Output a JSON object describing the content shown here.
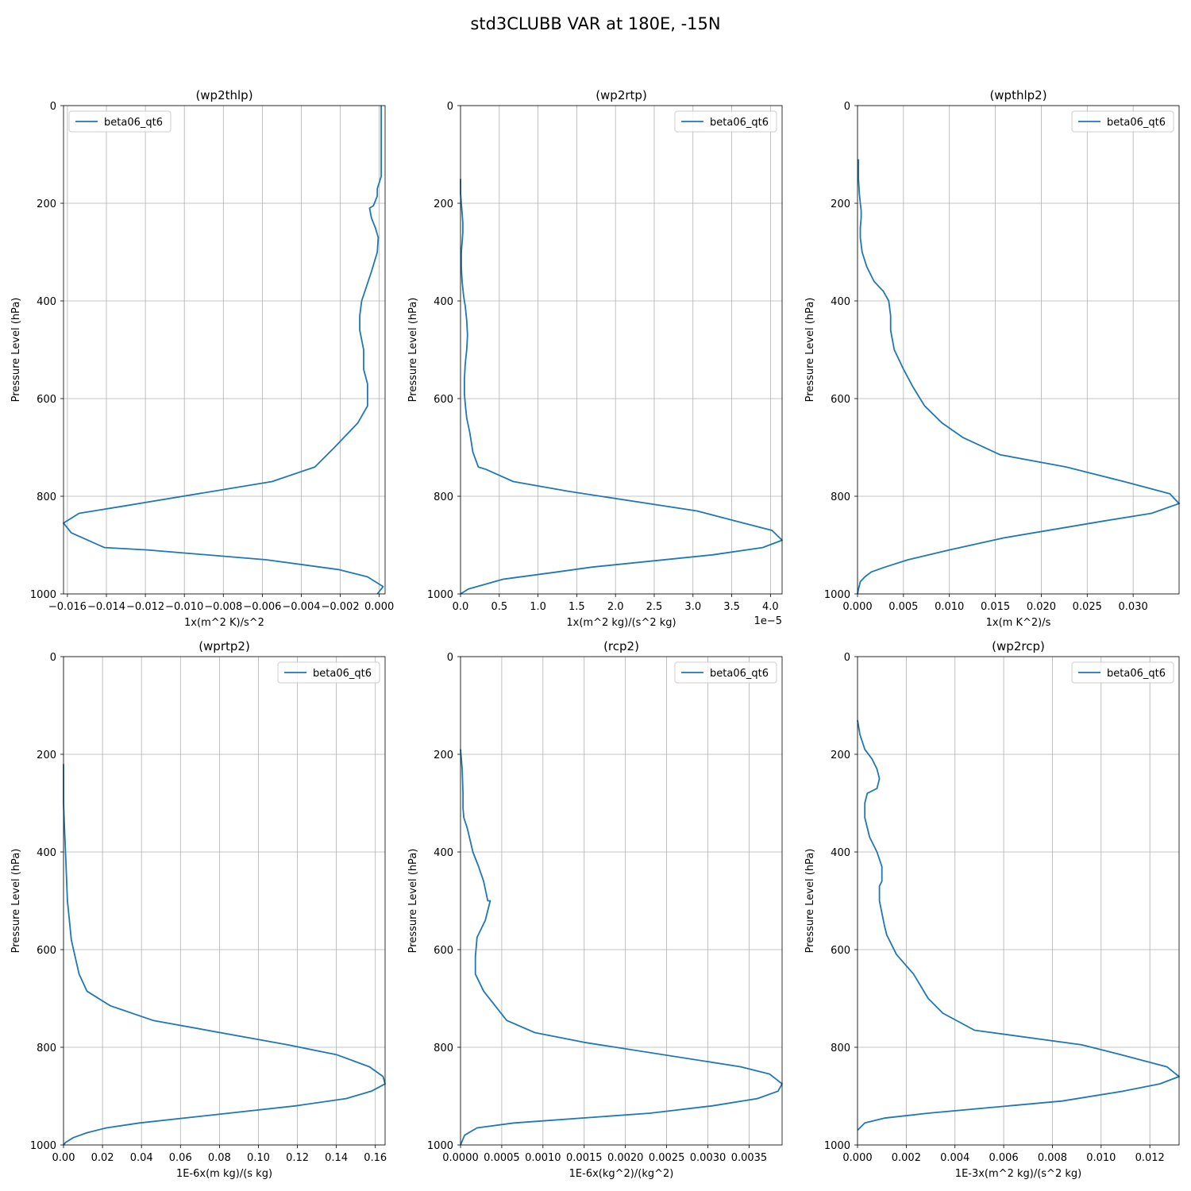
{
  "figure": {
    "title": "std3CLUBB VAR at 180E, -15N"
  },
  "line_color": "#1f77b4",
  "grid_color": "#b0b0b0",
  "chart_data": [
    {
      "type": "line",
      "title": "(wp2thlp)",
      "xlabel": "1x(m^2 K)/s^2",
      "ylabel": "Pressure Level (hPa)",
      "xlim": [
        -0.0162,
        0.0003
      ],
      "ylim": [
        1000,
        0
      ],
      "xticks": [
        -0.016,
        -0.014,
        -0.012,
        -0.01,
        -0.008,
        -0.006,
        -0.004,
        -0.002,
        0.0
      ],
      "xtick_labels": [
        "−0.016",
        "−0.014",
        "−0.012",
        "−0.010",
        "−0.008",
        "−0.006",
        "−0.004",
        "−0.002",
        "0.000"
      ],
      "yticks": [
        0,
        200,
        400,
        600,
        800,
        1000
      ],
      "ytick_labels": [
        "0",
        "200",
        "400",
        "600",
        "800",
        "1000"
      ],
      "offset_text": "",
      "legend": {
        "label": "beta06_qt6",
        "loc": "upper left"
      },
      "grid": true,
      "series": [
        {
          "name": "beta06_qt6",
          "x": [
            0.0001,
            0.0001,
            0.0001,
            0.0001,
            0.0001,
            -0.0001,
            -0.0001,
            -0.0003,
            -0.0005,
            -0.0004,
            -0.0002,
            -5e-05,
            -0.0001,
            -0.0004,
            -0.0009,
            -0.001,
            -0.001,
            -0.0008,
            -0.0008,
            -0.0006,
            -0.0006,
            -0.0006,
            -0.0011,
            -0.0023,
            -0.0033,
            -0.0055,
            -0.0131,
            -0.0154,
            -0.0162,
            -0.0158,
            -0.0141,
            -0.0119,
            -0.0058,
            -0.0021,
            -0.0006,
            0.0002,
            -0.0001
          ],
          "y": [
            0,
            50,
            100,
            120,
            145,
            170,
            185,
            205,
            210,
            230,
            250,
            270,
            300,
            340,
            400,
            430,
            460,
            500,
            540,
            570,
            600,
            615,
            650,
            700,
            740,
            770,
            820,
            835,
            855,
            875,
            905,
            910,
            930,
            950,
            965,
            985,
            1000
          ]
        }
      ]
    },
    {
      "type": "line",
      "title": "(wp2rtp)",
      "xlabel": "1x(m^2 kg)/(s^2 kg)",
      "ylabel": "Pressure Level (hPa)",
      "xlim": [
        0.0,
        4.15
      ],
      "ylim": [
        1000,
        0
      ],
      "xticks": [
        0.0,
        0.5,
        1.0,
        1.5,
        2.0,
        2.5,
        3.0,
        3.5,
        4.0
      ],
      "xtick_labels": [
        "0.0",
        "0.5",
        "1.0",
        "1.5",
        "2.0",
        "2.5",
        "3.0",
        "3.5",
        "4.0"
      ],
      "yticks": [
        0,
        200,
        400,
        600,
        800,
        1000
      ],
      "ytick_labels": [
        "0",
        "200",
        "400",
        "600",
        "800",
        "1000"
      ],
      "offset_text": "1e−5",
      "legend": {
        "label": "beta06_qt6",
        "loc": "upper right"
      },
      "grid": true,
      "series": [
        {
          "name": "beta06_qt6",
          "x": [
            0.0,
            0.0,
            0.01,
            0.02,
            0.03,
            0.03,
            0.02,
            0.01,
            0.01,
            0.02,
            0.04,
            0.06,
            0.08,
            0.09,
            0.08,
            0.06,
            0.05,
            0.05,
            0.06,
            0.08,
            0.12,
            0.16,
            0.23,
            0.33,
            0.68,
            1.4,
            3.05,
            3.65,
            4.02,
            4.15,
            3.9,
            3.25,
            1.7,
            1.25,
            0.55,
            0.1,
            0.0
          ],
          "y": [
            150,
            180,
            200,
            220,
            240,
            260,
            280,
            300,
            330,
            360,
            390,
            410,
            440,
            470,
            500,
            530,
            560,
            590,
            610,
            640,
            670,
            710,
            740,
            745,
            770,
            790,
            830,
            855,
            870,
            890,
            905,
            920,
            945,
            955,
            970,
            990,
            1000
          ]
        }
      ]
    },
    {
      "type": "line",
      "title": "(wpthlp2)",
      "xlabel": "1x(m K^2)/s",
      "ylabel": "Pressure Level (hPa)",
      "xlim": [
        0.0,
        0.035
      ],
      "ylim": [
        1000,
        0
      ],
      "xticks": [
        0.0,
        0.005,
        0.01,
        0.015,
        0.02,
        0.025,
        0.03
      ],
      "xtick_labels": [
        "0.000",
        "0.005",
        "0.010",
        "0.015",
        "0.020",
        "0.025",
        "0.030"
      ],
      "yticks": [
        0,
        200,
        400,
        600,
        800,
        1000
      ],
      "ytick_labels": [
        "0",
        "200",
        "400",
        "600",
        "800",
        "1000"
      ],
      "offset_text": "",
      "legend": {
        "label": "beta06_qt6",
        "loc": "upper right"
      },
      "grid": true,
      "series": [
        {
          "name": "beta06_qt6",
          "x": [
            0.0001,
            0.0001,
            0.0002,
            0.0003,
            0.0004,
            0.0004,
            0.0003,
            0.0003,
            0.0005,
            0.001,
            0.0018,
            0.0028,
            0.0034,
            0.0036,
            0.0036,
            0.004,
            0.005,
            0.006,
            0.0073,
            0.0092,
            0.0115,
            0.0155,
            0.0227,
            0.029,
            0.034,
            0.035,
            0.032,
            0.027,
            0.016,
            0.01,
            0.0055,
            0.003,
            0.0015,
            0.0008,
            0.0003,
            0.0001,
            0.0
          ],
          "y": [
            110,
            150,
            180,
            200,
            215,
            230,
            250,
            270,
            300,
            330,
            360,
            380,
            400,
            430,
            460,
            500,
            540,
            575,
            615,
            650,
            680,
            715,
            740,
            770,
            795,
            815,
            835,
            850,
            885,
            910,
            930,
            945,
            955,
            965,
            975,
            990,
            1000
          ]
        }
      ]
    },
    {
      "type": "line",
      "title": "(wprtp2)",
      "xlabel": "1E-6x(m kg)/(s kg)",
      "ylabel": "Pressure Level (hPa)",
      "xlim": [
        0.0,
        0.165
      ],
      "ylim": [
        1000,
        0
      ],
      "xticks": [
        0.0,
        0.02,
        0.04,
        0.06,
        0.08,
        0.1,
        0.12,
        0.14,
        0.16
      ],
      "xtick_labels": [
        "0.00",
        "0.02",
        "0.04",
        "0.06",
        "0.08",
        "0.10",
        "0.12",
        "0.14",
        "0.16"
      ],
      "yticks": [
        0,
        200,
        400,
        600,
        800,
        1000
      ],
      "ytick_labels": [
        "0",
        "200",
        "400",
        "600",
        "800",
        "1000"
      ],
      "offset_text": "",
      "legend": {
        "label": "beta06_qt6",
        "loc": "upper right"
      },
      "grid": true,
      "series": [
        {
          "name": "beta06_qt6",
          "x": [
            0.0,
            0.0,
            0.0005,
            0.001,
            0.0015,
            0.002,
            0.003,
            0.004,
            0.006,
            0.008,
            0.012,
            0.024,
            0.046,
            0.115,
            0.14,
            0.157,
            0.164,
            0.165,
            0.158,
            0.145,
            0.119,
            0.039,
            0.022,
            0.012,
            0.005,
            0.001,
            0.0
          ],
          "y": [
            220,
            300,
            350,
            400,
            450,
            500,
            540,
            580,
            615,
            650,
            685,
            715,
            745,
            795,
            815,
            840,
            860,
            875,
            890,
            905,
            920,
            955,
            965,
            975,
            985,
            995,
            1000
          ]
        }
      ]
    },
    {
      "type": "line",
      "title": "(rcp2)",
      "xlabel": "1E-6x(kg^2)/(kg^2)",
      "ylabel": "Pressure Level (hPa)",
      "xlim": [
        0.0,
        0.0039
      ],
      "ylim": [
        1000,
        0
      ],
      "xticks": [
        0.0,
        0.0005,
        0.001,
        0.0015,
        0.002,
        0.0025,
        0.003,
        0.0035
      ],
      "xtick_labels": [
        "0.0000",
        "0.0005",
        "0.0010",
        "0.0015",
        "0.0020",
        "0.0025",
        "0.0030",
        "0.0035"
      ],
      "yticks": [
        0,
        200,
        400,
        600,
        800,
        1000
      ],
      "ytick_labels": [
        "0",
        "200",
        "400",
        "600",
        "800",
        "1000"
      ],
      "offset_text": "",
      "legend": {
        "label": "beta06_qt6",
        "loc": "upper right"
      },
      "grid": true,
      "series": [
        {
          "name": "beta06_qt6",
          "x": [
            0.0,
            2e-05,
            3e-05,
            3e-05,
            4e-05,
            8e-05,
            0.00015,
            0.00022,
            0.00028,
            0.00033,
            0.00036,
            0.0003,
            0.0002,
            0.00018,
            0.00018,
            0.00028,
            0.00042,
            0.00056,
            0.0009,
            0.0015,
            0.0034,
            0.00375,
            0.0039,
            0.00385,
            0.0036,
            0.00305,
            0.0023,
            0.00065,
            0.0002,
            5e-05,
            0.0
          ],
          "y": [
            190,
            230,
            280,
            310,
            330,
            350,
            400,
            430,
            460,
            500,
            500,
            540,
            575,
            615,
            650,
            685,
            715,
            745,
            770,
            790,
            840,
            855,
            875,
            890,
            905,
            920,
            935,
            955,
            965,
            980,
            1000
          ]
        }
      ]
    },
    {
      "type": "line",
      "title": "(wp2rcp)",
      "xlabel": "1E-3x(m^2 kg)/(s^2 kg)",
      "ylabel": "Pressure Level (hPa)",
      "xlim": [
        0.0,
        0.0132
      ],
      "ylim": [
        1000,
        0
      ],
      "xticks": [
        0.0,
        0.002,
        0.004,
        0.006,
        0.008,
        0.01,
        0.012
      ],
      "xtick_labels": [
        "0.000",
        "0.002",
        "0.004",
        "0.006",
        "0.008",
        "0.010",
        "0.012"
      ],
      "yticks": [
        0,
        200,
        400,
        600,
        800,
        1000
      ],
      "ytick_labels": [
        "0",
        "200",
        "400",
        "600",
        "800",
        "1000"
      ],
      "offset_text": "",
      "legend": {
        "label": "beta06_qt6",
        "loc": "upper right"
      },
      "grid": true,
      "series": [
        {
          "name": "beta06_qt6",
          "x": [
            0.0,
            0.0001,
            0.0003,
            0.0006,
            0.0008,
            0.0009,
            0.0008,
            0.0004,
            0.0003,
            0.0003,
            0.0005,
            0.0008,
            0.001,
            0.001,
            0.0009,
            0.0009,
            0.0011,
            0.0012,
            0.0016,
            0.0023,
            0.0029,
            0.0035,
            0.0048,
            0.0092,
            0.0108,
            0.0127,
            0.0132,
            0.0124,
            0.0109,
            0.0084,
            0.0029,
            0.0011,
            0.0003,
            0.0
          ],
          "y": [
            130,
            160,
            190,
            210,
            230,
            250,
            270,
            280,
            300,
            330,
            370,
            400,
            430,
            460,
            470,
            500,
            550,
            570,
            610,
            650,
            700,
            730,
            765,
            795,
            815,
            840,
            860,
            875,
            890,
            910,
            935,
            945,
            955,
            970
          ]
        }
      ]
    }
  ]
}
